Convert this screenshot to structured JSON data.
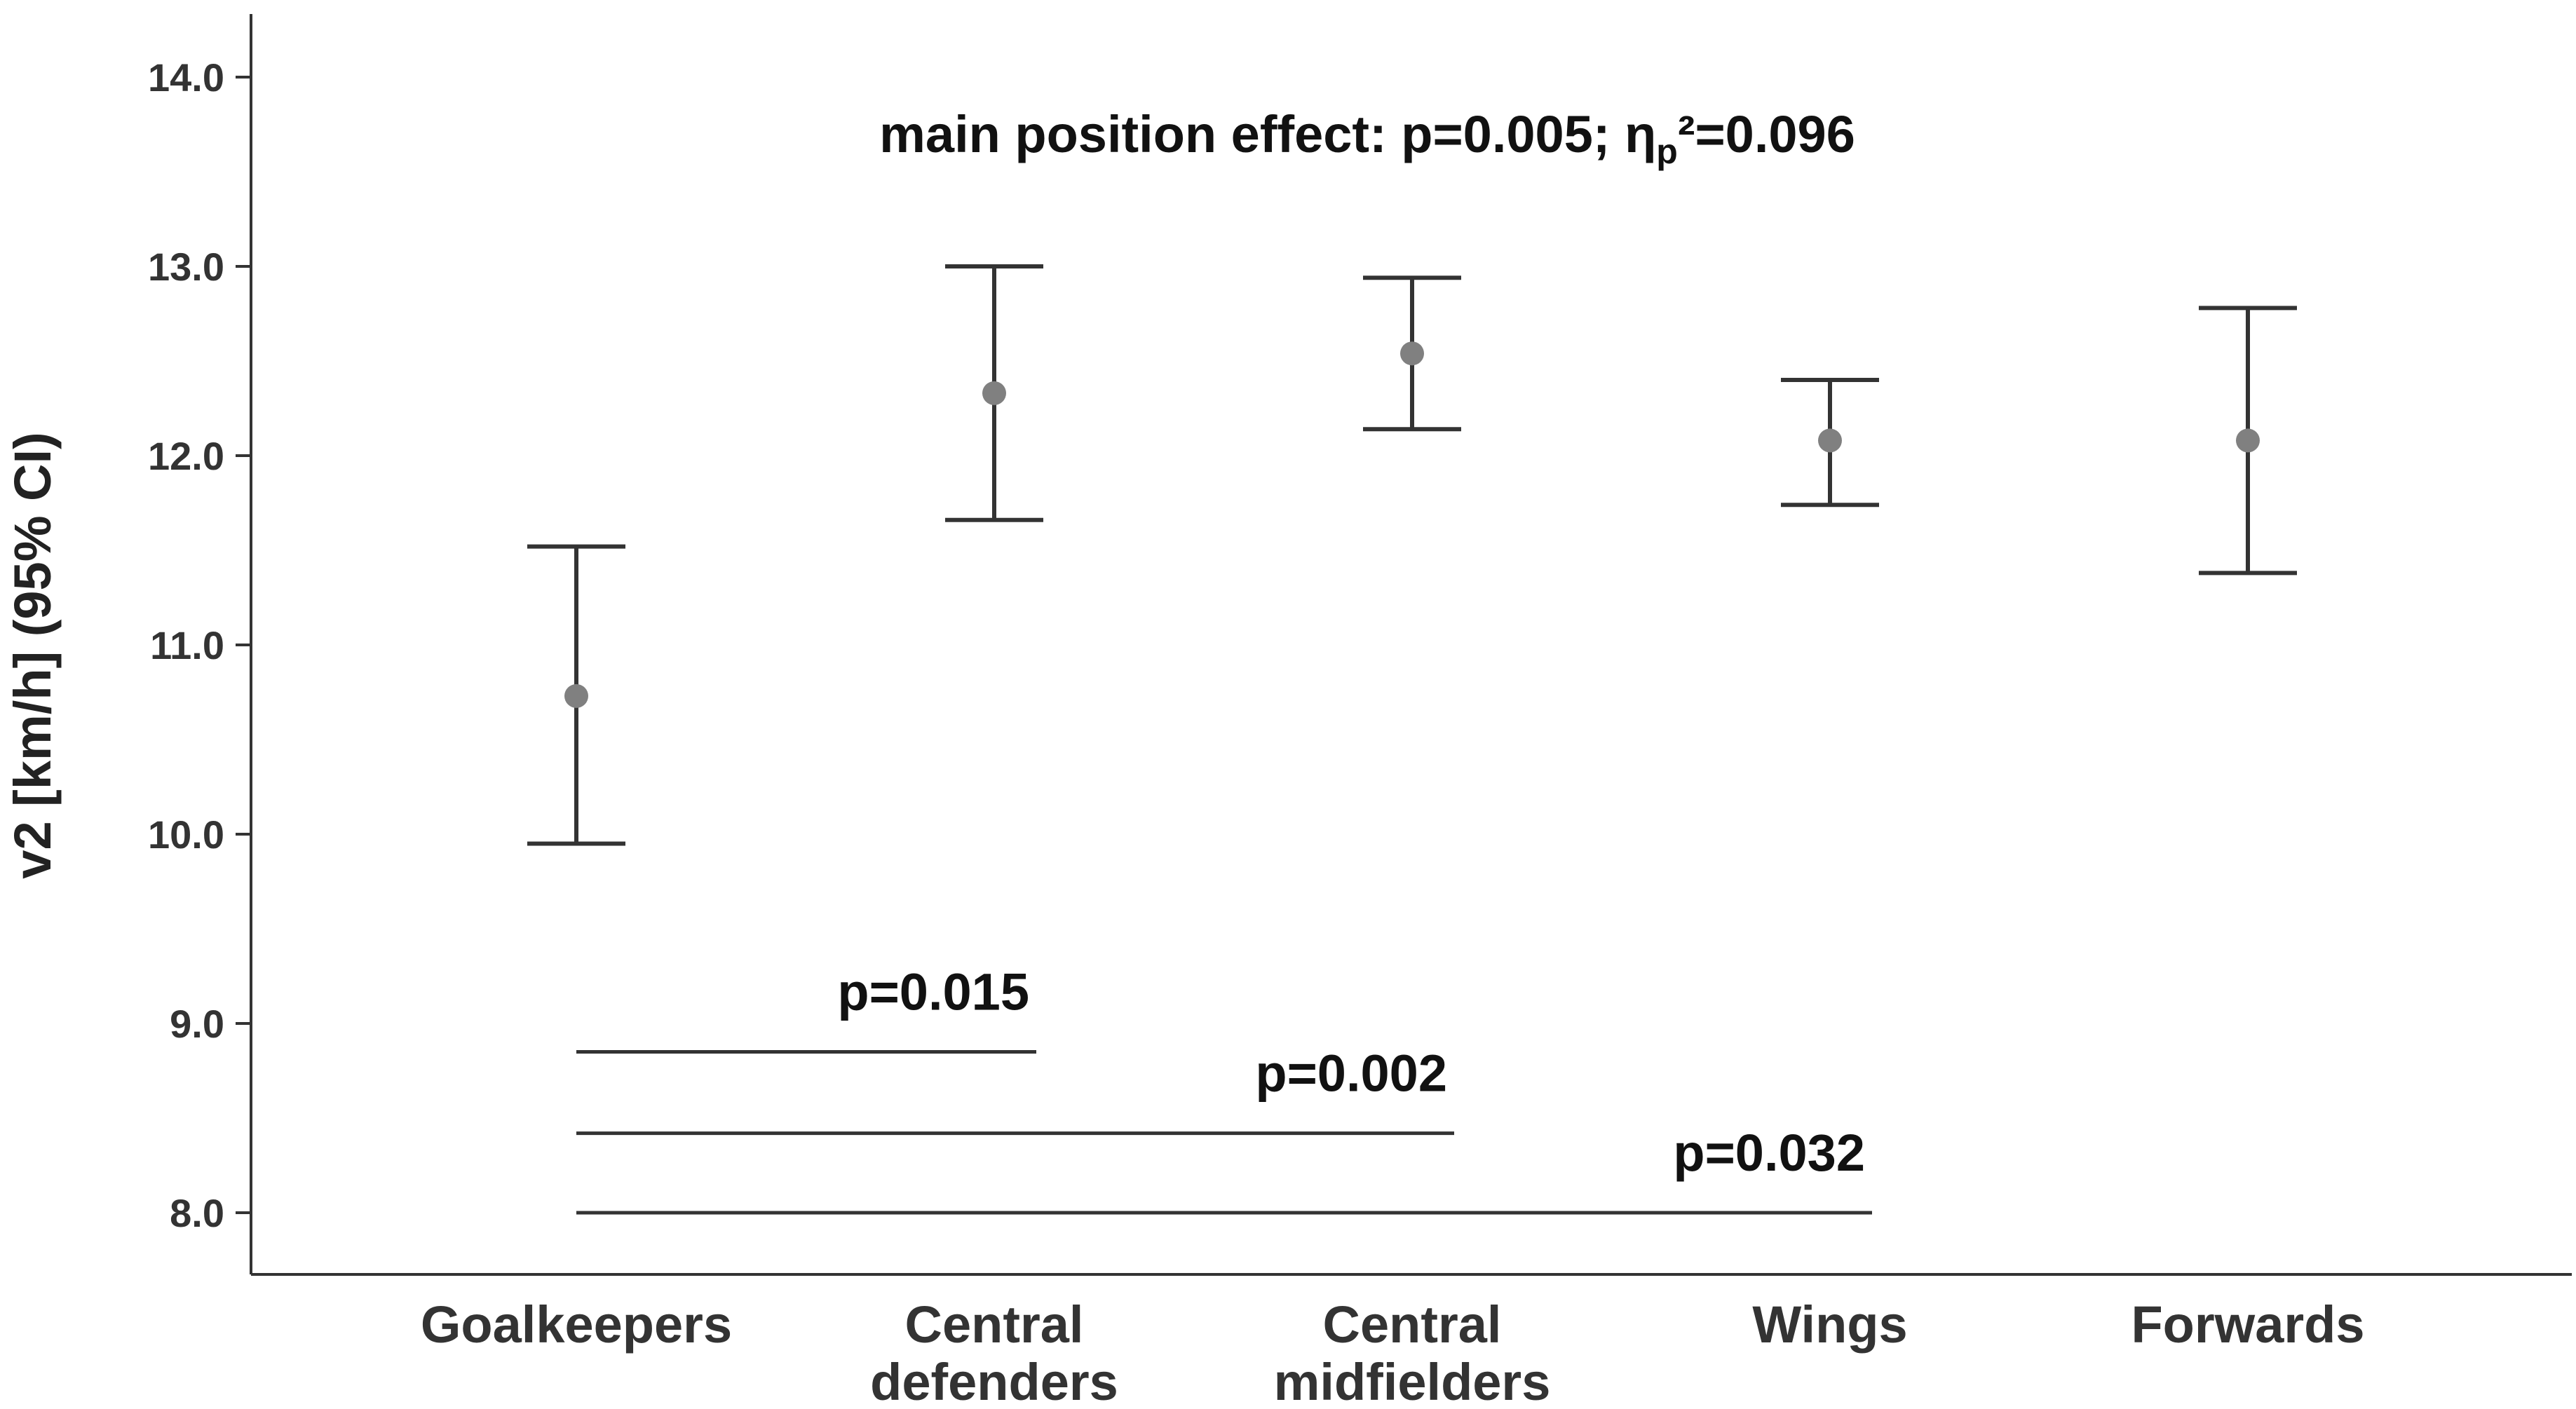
{
  "chart_data": {
    "type": "errorbar",
    "ylabel": "v2 [km/h] (95% CI)",
    "xlabel": "",
    "ylim": [
      7.7,
      14.3
    ],
    "yticks": [
      "8.0",
      "9.0",
      "10.0",
      "11.0",
      "12.0",
      "13.0",
      "14.0"
    ],
    "categories": [
      {
        "lines": [
          "Goalkeepers"
        ]
      },
      {
        "lines": [
          "Central",
          "defenders"
        ]
      },
      {
        "lines": [
          "Central",
          "midfielders"
        ]
      },
      {
        "lines": [
          "Wings"
        ]
      },
      {
        "lines": [
          "Forwards"
        ]
      }
    ],
    "series": [
      {
        "mean": [
          10.73,
          12.33,
          12.54,
          12.08,
          12.08
        ],
        "lower": [
          9.95,
          11.66,
          12.14,
          11.74,
          11.38
        ],
        "upper": [
          11.52,
          13.0,
          12.94,
          12.4,
          12.78
        ]
      }
    ],
    "annotation": {
      "prefix": "main position effect: p=0.005; η",
      "sub": "p",
      "suffix": "²=0.096"
    },
    "comparisons": [
      {
        "from": 0,
        "to": 1,
        "y": 8.85,
        "label": "p=0.015"
      },
      {
        "from": 0,
        "to": 2,
        "y": 8.42,
        "label": "p=0.002"
      },
      {
        "from": 0,
        "to": 3,
        "y": 8.0,
        "label": "p=0.032"
      }
    ],
    "colors": {
      "point": "#808080",
      "line": "#333333",
      "axis": "#333333"
    }
  }
}
